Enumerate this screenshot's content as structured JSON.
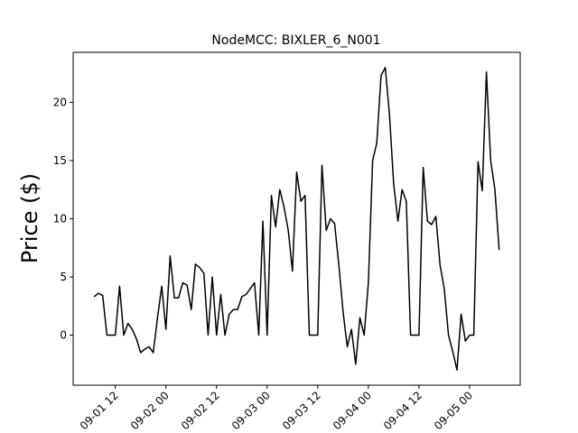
{
  "chart_data": {
    "type": "line",
    "title": "NodeMCC: BIXLER_6_N001",
    "ylabel": "Price ($)",
    "x": [
      "09-01 07",
      "09-01 08",
      "09-01 09",
      "09-01 10",
      "09-01 11",
      "09-01 12",
      "09-01 13",
      "09-01 14",
      "09-01 15",
      "09-01 16",
      "09-01 17",
      "09-01 18",
      "09-01 19",
      "09-01 20",
      "09-01 21",
      "09-01 22",
      "09-01 23",
      "09-02 00",
      "09-02 01",
      "09-02 02",
      "09-02 03",
      "09-02 04",
      "09-02 05",
      "09-02 06",
      "09-02 07",
      "09-02 08",
      "09-02 09",
      "09-02 10",
      "09-02 11",
      "09-02 12",
      "09-02 13",
      "09-02 14",
      "09-02 15",
      "09-02 16",
      "09-02 17",
      "09-02 18",
      "09-02 19",
      "09-02 20",
      "09-02 21",
      "09-02 22",
      "09-02 23",
      "09-03 00",
      "09-03 01",
      "09-03 02",
      "09-03 03",
      "09-03 04",
      "09-03 05",
      "09-03 06",
      "09-03 07",
      "09-03 08",
      "09-03 09",
      "09-03 10",
      "09-03 11",
      "09-03 12",
      "09-03 13",
      "09-03 14",
      "09-03 15",
      "09-03 16",
      "09-03 17",
      "09-03 18",
      "09-03 19",
      "09-03 20",
      "09-03 21",
      "09-03 22",
      "09-03 23",
      "09-04 00",
      "09-04 01",
      "09-04 02",
      "09-04 03",
      "09-04 04",
      "09-04 05",
      "09-04 06",
      "09-04 07",
      "09-04 08",
      "09-04 09",
      "09-04 10",
      "09-04 11",
      "09-04 12",
      "09-04 13",
      "09-04 14",
      "09-04 15",
      "09-04 16",
      "09-04 17",
      "09-04 18",
      "09-04 19",
      "09-04 20",
      "09-04 21",
      "09-04 22",
      "09-04 23",
      "09-05 00",
      "09-05 01",
      "09-05 02",
      "09-05 03",
      "09-05 04",
      "09-05 05",
      "09-05 06",
      "09-05 07"
    ],
    "series": [
      {
        "name": "Price",
        "color": "#000000",
        "values": [
          3.3,
          3.6,
          3.4,
          0,
          0,
          0,
          4.2,
          0,
          1.0,
          0.5,
          -0.3,
          -1.5,
          -1.2,
          -1.0,
          -1.5,
          1.5,
          4.2,
          0.5,
          6.8,
          3.2,
          3.2,
          4.5,
          4.3,
          2.2,
          6.1,
          5.8,
          5.3,
          0,
          5.0,
          0,
          3.5,
          0,
          1.8,
          2.2,
          2.2,
          3.3,
          3.5,
          4.0,
          4.5,
          0,
          9.8,
          0,
          12,
          9.3,
          12.5,
          11,
          9,
          5.5,
          14,
          11.5,
          12,
          0,
          0,
          0,
          14.6,
          9,
          10,
          9.6,
          6,
          2,
          -1,
          0.5,
          -2.5,
          1.5,
          0,
          4.5,
          15,
          16.5,
          22.3,
          23,
          19,
          13,
          9.8,
          12.5,
          11.5,
          0,
          0,
          0,
          14.4,
          9.8,
          9.5,
          10.2,
          6,
          4,
          0,
          -1.4,
          -3,
          1.8,
          -0.5,
          0,
          0,
          14.9,
          12.4,
          22.6,
          15,
          12.5,
          7.3
        ]
      }
    ],
    "xlim": [
      "09-01 02",
      "09-05 12"
    ],
    "xticks": [
      "09-01 12",
      "09-02 00",
      "09-02 12",
      "09-03 00",
      "09-03 12",
      "09-04 00",
      "09-04 12",
      "09-05 00"
    ],
    "ylim": [
      -4.3,
      24.3
    ],
    "yticks": [
      0,
      5,
      10,
      15,
      20
    ],
    "grid": false
  }
}
